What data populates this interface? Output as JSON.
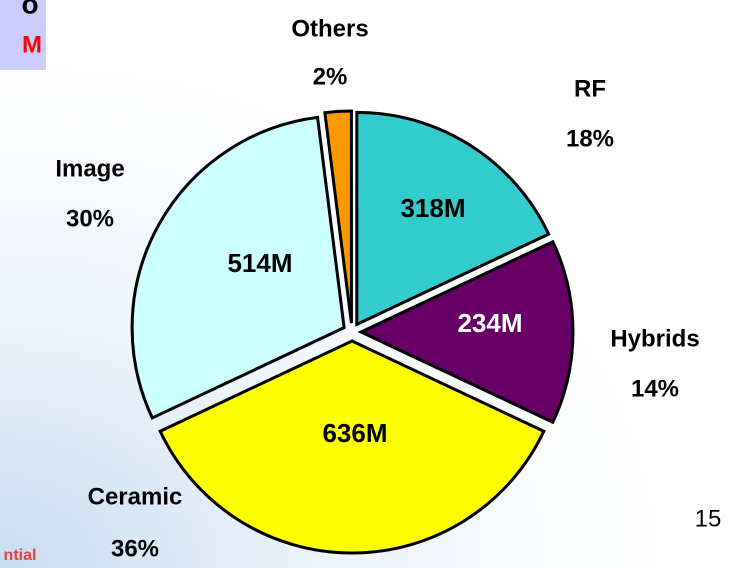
{
  "chart_data": {
    "type": "pie",
    "categories": [
      "RF",
      "Hybrids",
      "Ceramic",
      "Image",
      "Others"
    ],
    "values": [
      18,
      14,
      36,
      30,
      2
    ],
    "value_labels": [
      "18%",
      "14%",
      "36%",
      "30%",
      "2%"
    ],
    "amounts": [
      318,
      234,
      636,
      514,
      null
    ],
    "amount_labels": [
      "318M",
      "234M",
      "636M",
      "514M",
      null
    ],
    "colors": [
      "#33cccc",
      "#660066",
      "#ffff00",
      "#ccffff",
      "#ff9900"
    ]
  },
  "header_fragment": [
    "o",
    "M"
  ],
  "footer_fragment": "ntial",
  "page_number": "15"
}
